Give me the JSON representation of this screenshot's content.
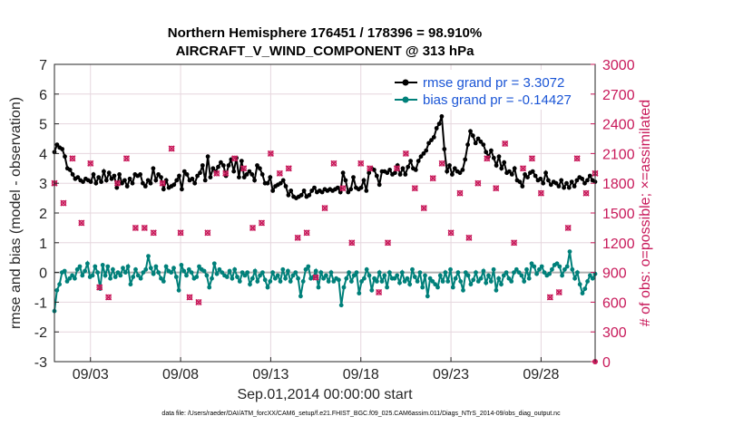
{
  "chart_data": {
    "type": "line",
    "title": "Northern Hemisphere 176451 / 178396 = 98.910%",
    "subtitle": "AIRCRAFT_V_WIND_COMPONENT @ 313 hPa",
    "xlabel": "Sep.01,2014 00:00:00 start",
    "ylabel_left": "rmse and bias (model - observation)",
    "ylabel_right": "# of obs: o=possible; ×=assimilated",
    "xlim": [
      1,
      31
    ],
    "ylim_left": [
      -3,
      7
    ],
    "ylim_right": [
      0,
      3000
    ],
    "left_ticks": [
      "-3",
      "-2",
      "-1",
      "0",
      "1",
      "2",
      "3",
      "4",
      "5",
      "6",
      "7"
    ],
    "right_ticks": [
      "0",
      "300",
      "600",
      "900",
      "1200",
      "1500",
      "1800",
      "2100",
      "2400",
      "2700",
      "3000"
    ],
    "x_ticks": [
      {
        "day": 3,
        "label": "09/03"
      },
      {
        "day": 8,
        "label": "09/08"
      },
      {
        "day": 13,
        "label": "09/13"
      },
      {
        "day": 18,
        "label": "09/18"
      },
      {
        "day": 23,
        "label": "09/23"
      },
      {
        "day": 28,
        "label": "09/28"
      }
    ],
    "footnote": "data file: /Users/raeder/DAI/ATM_forcXX/CAM6_setup/f.e21.FHIST_BGC.f09_025.CAM6assim.011/Diags_NTrS_2014-09/obs_diag_output.nc",
    "series": [
      {
        "name": "rmse grand pr = 3.3072",
        "color": "#000000",
        "axis": "left",
        "values": [
          4.05,
          4.3,
          4.2,
          4.15,
          3.9,
          3.5,
          3.45,
          3.3,
          3.15,
          3.2,
          3.1,
          3.05,
          3.15,
          3.1,
          3.05,
          3.3,
          3.0,
          3.2,
          3.05,
          3.4,
          3.1,
          3.35,
          3.15,
          3.25,
          2.85,
          3.3,
          3.0,
          3.1,
          2.9,
          3.15,
          3.0,
          3.3,
          3.25,
          3.3,
          3.0,
          2.9,
          3.1,
          3.0,
          3.5,
          3.1,
          3.3,
          3.2,
          2.8,
          3.1,
          2.85,
          2.9,
          2.95,
          3.1,
          3.25,
          2.8,
          3.4,
          3.3,
          3.1,
          3.15,
          3.0,
          3.25,
          3.35,
          3.6,
          3.1,
          3.9,
          3.2,
          3.5,
          3.4,
          3.55,
          3.7,
          3.6,
          3.25,
          3.6,
          3.8,
          3.4,
          3.85,
          3.2,
          3.75,
          3.2,
          3.3,
          3.4,
          3.3,
          3.1,
          3.6,
          3.5,
          3.3,
          3.0,
          3.0,
          3.2,
          2.75,
          2.9,
          2.95,
          3.0,
          3.1,
          2.9,
          2.6,
          2.75,
          2.55,
          2.5,
          2.55,
          2.6,
          2.75,
          2.55,
          2.6,
          2.75,
          2.85,
          2.7,
          2.75,
          2.7,
          2.8,
          2.75,
          2.8,
          2.75,
          2.8,
          2.85,
          2.7,
          3.35,
          3.1,
          2.7,
          2.8,
          3.2,
          2.85,
          2.8,
          2.85,
          3.1,
          2.75,
          3.35,
          3.5,
          3.45,
          3.25,
          2.95,
          3.4,
          3.4,
          3.35,
          3.45,
          3.3,
          3.35,
          3.6,
          3.3,
          3.5,
          3.3,
          3.55,
          3.75,
          3.5,
          3.45,
          3.75,
          3.9,
          4.0,
          4.1,
          4.35,
          4.45,
          4.55,
          4.85,
          5.0,
          5.25,
          4.15,
          3.4,
          3.6,
          3.3,
          3.5,
          3.4,
          3.35,
          3.45,
          3.8,
          4.3,
          4.75,
          4.6,
          4.35,
          4.5,
          4.4,
          4.3,
          4.05,
          3.9,
          4.1,
          3.85,
          3.6,
          3.9,
          3.5,
          3.7,
          3.35,
          3.4,
          3.3,
          3.5,
          3.1,
          3.05,
          2.9,
          3.3,
          3.2,
          3.35,
          3.4,
          3.25,
          3.1,
          3.15,
          3.0,
          3.35,
          3.1,
          2.95,
          3.05,
          3.0,
          2.9,
          3.1,
          2.85,
          3.0,
          2.85,
          3.05,
          2.9,
          3.1,
          3.2,
          3.15,
          3.0,
          3.1,
          3.25,
          3.1,
          3.05
        ]
      },
      {
        "name": "bias grand pr = -0.14427",
        "color": "#00807a",
        "axis": "left",
        "values": [
          -1.3,
          -0.6,
          -0.4,
          0.0,
          0.05,
          -0.3,
          -0.2,
          -0.1,
          -0.2,
          0.1,
          0.2,
          -0.1,
          0.05,
          0.3,
          -0.15,
          -0.1,
          0.2,
          0.0,
          -0.55,
          0.25,
          -0.1,
          0.2,
          -0.2,
          0.1,
          -0.15,
          0.0,
          -0.1,
          0.15,
          0.0,
          0.2,
          -0.4,
          -0.15,
          0.1,
          -0.1,
          -0.2,
          0.0,
          0.1,
          0.55,
          0.15,
          -0.05,
          0.2,
          0.0,
          -0.2,
          -0.3,
          0.2,
          0.05,
          0.0,
          0.15,
          -0.15,
          -0.6,
          0.25,
          0.05,
          -0.1,
          0.1,
          0.0,
          -0.2,
          -0.15,
          0.2,
          0.1,
          0.05,
          -0.1,
          -0.5,
          -0.2,
          0.3,
          -0.05,
          0.1,
          0.0,
          -0.1,
          -0.15,
          0.05,
          -0.2,
          0.1,
          -0.15,
          -0.3,
          0.0,
          -0.1,
          0.0,
          -0.4,
          -0.2,
          0.05,
          -0.3,
          -0.1,
          0.0,
          -0.25,
          -0.5,
          -0.3,
          0.0,
          -0.2,
          -0.1,
          -0.3,
          0.1,
          -0.2,
          0.05,
          -0.3,
          -0.1,
          0.0,
          -0.2,
          -0.8,
          -0.3,
          0.1,
          0.2,
          -0.2,
          -0.15,
          0.05,
          -0.5,
          0.0,
          -0.2,
          -0.1,
          -0.3,
          0.0,
          -0.3,
          -0.2,
          -0.25,
          -1.1,
          -0.5,
          -0.2,
          0.0,
          -0.3,
          -0.1,
          0.0,
          -0.7,
          -0.3,
          -0.2,
          0.1,
          -0.1,
          -0.6,
          -0.2,
          -0.3,
          0.0,
          -0.3,
          -0.1,
          -0.5,
          0.0,
          -0.2,
          -0.2,
          -0.1,
          -0.35,
          0.0,
          -0.3,
          -0.2,
          -0.4,
          0.1,
          -0.15,
          -0.3,
          0.0,
          -0.5,
          -0.1,
          -0.8,
          -0.2,
          -0.3,
          -0.4,
          -0.5,
          -0.1,
          -0.3,
          0.0,
          -0.3,
          0.1,
          -0.5,
          -0.2,
          0.0,
          -0.3,
          -0.6,
          0.0,
          -0.1,
          -0.4,
          -0.25,
          0.0,
          -0.3,
          -0.2,
          0.05,
          -0.35,
          -0.1,
          -0.3,
          0.1,
          -0.6,
          -0.2,
          -0.4,
          -0.1,
          0.0,
          -0.2,
          -0.3,
          0.0,
          0.1,
          0.0,
          -0.1,
          -0.3,
          0.1,
          -0.2,
          0.3,
          0.2,
          -0.05,
          0.1,
          0.2,
          0.0,
          -0.1,
          -0.05,
          0.1,
          0.25,
          0.3,
          0.2,
          -0.1,
          0.1,
          0.2,
          0.7,
          0.1,
          -0.2,
          0.0,
          -0.4,
          -0.7,
          -0.55,
          -0.3,
          -0.1,
          -0.2,
          -0.05
        ]
      }
    ],
    "obs_counts": {
      "color": "#c8195a",
      "axis": "right",
      "values": [
        1800,
        1600,
        2050,
        1400,
        2000,
        750,
        650,
        1800,
        2050,
        1350,
        1350,
        1300,
        1800,
        2150,
        1300,
        650,
        600,
        1300,
        1900,
        1900,
        2050,
        1950,
        1350,
        1400,
        2100,
        1900,
        1950,
        1250,
        1300,
        850,
        1550,
        2000,
        1750,
        1200,
        2000,
        1950,
        700,
        1200,
        1950,
        2100,
        1750,
        1550,
        1850,
        2000,
        1300,
        1700,
        1250,
        1800,
        2050,
        1750,
        2200,
        1200,
        1950,
        2050,
        1700,
        650,
        700,
        1350,
        2050,
        1700,
        1900,
        1200,
        2050,
        2000,
        1350,
        2100,
        1300,
        1950,
        1250,
        2050,
        2000,
        1250,
        1750,
        2150,
        1300,
        2000,
        1950,
        1400,
        1850,
        1900,
        1250,
        2000,
        2300,
        1350,
        1750,
        2150,
        2100,
        1450,
        2450,
        1850,
        1950,
        2000,
        1800,
        1900,
        1250,
        1800,
        1200,
        2050,
        1850,
        1950,
        1300,
        1900,
        1950,
        1250,
        1800,
        2050,
        1250,
        1300,
        2100,
        2000,
        1800,
        1300,
        1950,
        1800,
        2000,
        2050,
        1400,
        2000,
        1250,
        1800,
        2050,
        1850,
        1350,
        2000,
        1900,
        2050,
        1250,
        1800,
        2150,
        1300,
        1200,
        1950,
        1800,
        2050,
        1400,
        1950,
        2200,
        1300,
        1800,
        2100,
        1900,
        1300,
        2050,
        1850,
        1400,
        1800,
        2050,
        1300,
        1800,
        2050,
        1900,
        1400,
        1850,
        1950,
        1300,
        2050,
        1850,
        1350,
        1800,
        2100,
        1250,
        1850,
        1900,
        1250,
        1800,
        1950,
        1300,
        2000,
        1900,
        1300,
        1950,
        1850,
        1350,
        2000,
        1800,
        1300,
        2050,
        1400,
        1900,
        2000,
        1950,
        1300,
        1850,
        1900,
        1800,
        1250,
        1950,
        2050,
        1900,
        1350,
        1800,
        1250,
        1850,
        2050,
        1950,
        1400,
        1800,
        1850,
        1300,
        1900,
        2100,
        1950,
        1350,
        1900,
        2050,
        1250,
        1850,
        2050,
        1950,
        1300,
        1800,
        1950,
        1850,
        2000,
        1900,
        1400,
        1950,
        1850,
        1300,
        1800,
        1950,
        1850,
        1900,
        2000,
        1850,
        1950,
        1800,
        1850,
        1900,
        1950,
        1800,
        1800,
        2000,
        1800,
        1850,
        1900,
        1950,
        1850,
        1800,
        1900,
        2050,
        1850,
        1800,
        1950,
        1900,
        1850,
        1800,
        1950,
        1900,
        1850
      ]
    }
  }
}
